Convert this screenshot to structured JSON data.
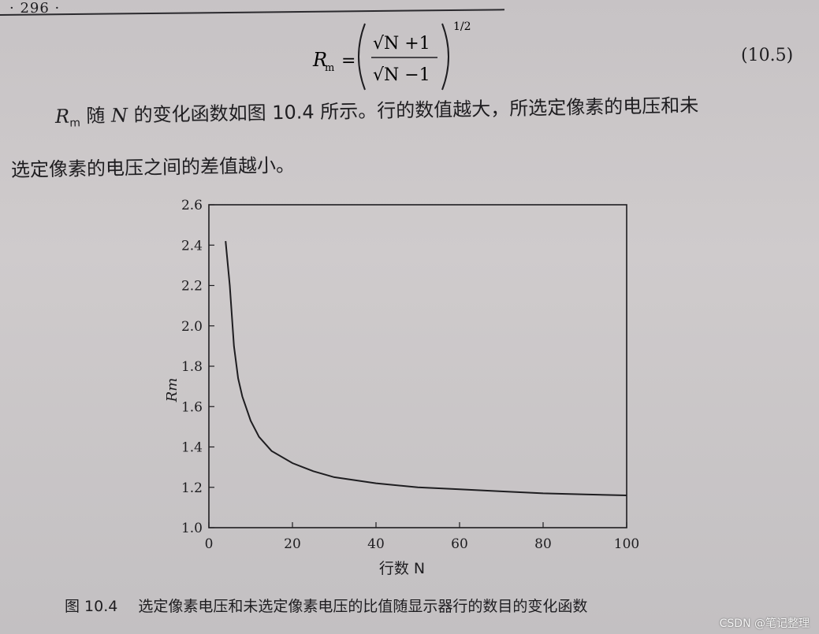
{
  "page": {
    "number": "· 296 ·"
  },
  "equation": {
    "lhs": "R",
    "lhs_sub": "m",
    "numerator": "√N +1",
    "denominator": "√N −1",
    "exponent": "1/2",
    "number": "(10.5)"
  },
  "paragraph": {
    "line1_symbol": "R",
    "line1_symbol_sub": "m",
    "line1_text_a": " 随 ",
    "line1_var": "N",
    "line1_text_b": " 的变化函数如图 10.4 所示。行的数值越大，所选定像素的电压和未",
    "line2": "选定像素的电压之间的差值越小。"
  },
  "figure": {
    "caption_number": "图 10.4",
    "caption_text": "选定像素电压和未选定像素电压的比值随显示器行的数目的变化函数"
  },
  "chart_data": {
    "type": "line",
    "xlabel": "行数 N",
    "ylabel": "Rm",
    "xlim": [
      0,
      100
    ],
    "ylim": [
      1.0,
      2.6
    ],
    "x_ticks": [
      "0",
      "20",
      "40",
      "60",
      "80",
      "100"
    ],
    "y_ticks": [
      "1.0",
      "1.2",
      "1.4",
      "1.6",
      "1.8",
      "2.0",
      "2.2",
      "2.4",
      "2.6"
    ],
    "grid": false,
    "series": [
      {
        "x": [
          4,
          5,
          6,
          7,
          8,
          10,
          12,
          15,
          20,
          25,
          30,
          40,
          50,
          60,
          70,
          80,
          90,
          100
        ],
        "values": [
          2.42,
          2.2,
          1.9,
          1.74,
          1.65,
          1.53,
          1.45,
          1.38,
          1.32,
          1.28,
          1.25,
          1.22,
          1.2,
          1.19,
          1.18,
          1.17,
          1.165,
          1.16
        ]
      }
    ]
  },
  "watermark": {
    "text": "CSDN @笔记整理"
  }
}
